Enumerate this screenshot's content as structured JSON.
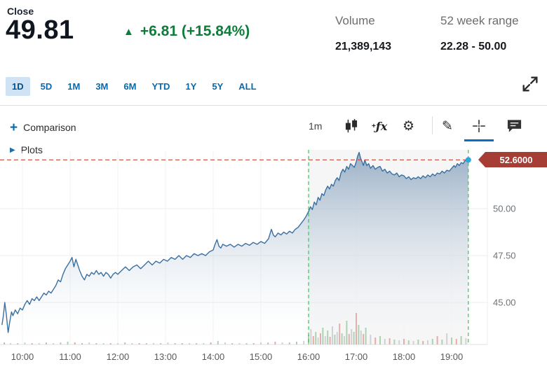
{
  "header": {
    "close_label": "Close",
    "close_value": "49.81",
    "up_arrow": "▲",
    "change_text": "+6.81 (+15.84%)",
    "volume_label": "Volume",
    "volume_value": "21,389,143",
    "range_label": "52 week range",
    "range_value": "22.28 - 50.00",
    "accent_green": "#0e7d3b",
    "accent_blue": "#0769ae"
  },
  "tabs": [
    "1D",
    "5D",
    "1M",
    "3M",
    "6M",
    "YTD",
    "1Y",
    "5Y",
    "ALL"
  ],
  "toolbar": {
    "comparison_plus": "+",
    "comparison_label": "Comparison",
    "interval_label": "1m",
    "fx_plus": "+",
    "fx_label": "ƒx",
    "gear_glyph": "⚙",
    "pencil_glyph": "✎"
  },
  "plots": {
    "arrow": "▶",
    "label": "Plots"
  },
  "price_flag": {
    "value": "52.6000",
    "color": "#a63e35"
  },
  "chart_data": {
    "type": "area",
    "x_ticks": [
      "10:00",
      "11:00",
      "12:00",
      "13:00",
      "14:00",
      "15:00",
      "16:00",
      "17:00",
      "18:00",
      "19:00"
    ],
    "x_tick_hours": [
      10,
      11,
      12,
      13,
      14,
      15,
      16,
      17,
      18,
      19
    ],
    "y_ticks": [
      {
        "label": "50.00",
        "value": 50
      },
      {
        "label": "47.50",
        "value": 47.5
      },
      {
        "label": "45.00",
        "value": 45
      }
    ],
    "ylim": [
      42.5,
      53.5
    ],
    "x_range_hours": [
      9.55,
      19.42
    ],
    "last_price": 52.6,
    "session_lines_hours": [
      16.0,
      19.35
    ],
    "line_color": "#3a70a1",
    "fill_top": "rgba(77,118,158,0.55)",
    "fill_bottom": "rgba(255,255,255,0.03)",
    "session_fill": "rgba(123,133,145,0.07)",
    "session_line_color": "#35c84f",
    "last_price_line_color": "#cc4437",
    "dot_color": "#2ea6df",
    "volume_colors": {
      "n": "#ccd0d4",
      "g": "#a9d0ae",
      "r": "#e2aaa5"
    },
    "points": [
      [
        9.57,
        43.8
      ],
      [
        9.6,
        44.3
      ],
      [
        9.63,
        45.0
      ],
      [
        9.66,
        44.4
      ],
      [
        9.7,
        43.4
      ],
      [
        9.73,
        43.9
      ],
      [
        9.77,
        44.5
      ],
      [
        9.8,
        44.3
      ],
      [
        9.85,
        44.6
      ],
      [
        9.9,
        44.4
      ],
      [
        9.95,
        44.7
      ],
      [
        10.0,
        44.6
      ],
      [
        10.05,
        44.9
      ],
      [
        10.1,
        45.1
      ],
      [
        10.15,
        44.9
      ],
      [
        10.2,
        45.2
      ],
      [
        10.25,
        45.1
      ],
      [
        10.3,
        45.3
      ],
      [
        10.35,
        45.1
      ],
      [
        10.4,
        45.3
      ],
      [
        10.45,
        45.5
      ],
      [
        10.5,
        45.4
      ],
      [
        10.55,
        45.6
      ],
      [
        10.6,
        45.5
      ],
      [
        10.65,
        45.7
      ],
      [
        10.7,
        45.9
      ],
      [
        10.75,
        46.2
      ],
      [
        10.8,
        46.1
      ],
      [
        10.85,
        46.5
      ],
      [
        10.9,
        46.8
      ],
      [
        10.95,
        47.0
      ],
      [
        11.0,
        47.2
      ],
      [
        11.04,
        47.4
      ],
      [
        11.08,
        46.9
      ],
      [
        11.12,
        47.3
      ],
      [
        11.16,
        47.0
      ],
      [
        11.2,
        46.7
      ],
      [
        11.25,
        46.4
      ],
      [
        11.3,
        46.2
      ],
      [
        11.35,
        46.5
      ],
      [
        11.4,
        46.4
      ],
      [
        11.45,
        46.6
      ],
      [
        11.5,
        46.5
      ],
      [
        11.55,
        46.7
      ],
      [
        11.6,
        46.5
      ],
      [
        11.65,
        46.6
      ],
      [
        11.7,
        46.4
      ],
      [
        11.75,
        46.6
      ],
      [
        11.8,
        46.5
      ],
      [
        11.85,
        46.3
      ],
      [
        11.9,
        46.5
      ],
      [
        11.95,
        46.6
      ],
      [
        12.0,
        46.5
      ],
      [
        12.08,
        46.7
      ],
      [
        12.16,
        46.9
      ],
      [
        12.24,
        46.7
      ],
      [
        12.32,
        46.9
      ],
      [
        12.4,
        47.0
      ],
      [
        12.48,
        46.8
      ],
      [
        12.56,
        47.0
      ],
      [
        12.64,
        47.2
      ],
      [
        12.72,
        47.0
      ],
      [
        12.8,
        47.2
      ],
      [
        12.88,
        47.1
      ],
      [
        12.96,
        47.3
      ],
      [
        13.04,
        47.2
      ],
      [
        13.12,
        47.4
      ],
      [
        13.2,
        47.3
      ],
      [
        13.28,
        47.5
      ],
      [
        13.36,
        47.3
      ],
      [
        13.44,
        47.5
      ],
      [
        13.52,
        47.4
      ],
      [
        13.6,
        47.6
      ],
      [
        13.68,
        47.5
      ],
      [
        13.76,
        47.6
      ],
      [
        13.84,
        47.5
      ],
      [
        13.92,
        47.7
      ],
      [
        14.0,
        47.8
      ],
      [
        14.04,
        48.1
      ],
      [
        14.08,
        48.35
      ],
      [
        14.12,
        48.0
      ],
      [
        14.16,
        47.9
      ],
      [
        14.2,
        48.1
      ],
      [
        14.28,
        48.0
      ],
      [
        14.36,
        48.1
      ],
      [
        14.44,
        47.95
      ],
      [
        14.52,
        48.1
      ],
      [
        14.6,
        48.0
      ],
      [
        14.68,
        48.15
      ],
      [
        14.76,
        48.05
      ],
      [
        14.84,
        48.2
      ],
      [
        14.92,
        48.1
      ],
      [
        15.0,
        48.25
      ],
      [
        15.08,
        48.15
      ],
      [
        15.16,
        48.4
      ],
      [
        15.22,
        48.9
      ],
      [
        15.26,
        48.6
      ],
      [
        15.3,
        48.5
      ],
      [
        15.36,
        48.7
      ],
      [
        15.42,
        48.6
      ],
      [
        15.48,
        48.75
      ],
      [
        15.54,
        48.65
      ],
      [
        15.6,
        48.8
      ],
      [
        15.66,
        48.7
      ],
      [
        15.72,
        48.9
      ],
      [
        15.78,
        49.0
      ],
      [
        15.84,
        49.2
      ],
      [
        15.9,
        49.4
      ],
      [
        15.95,
        49.6
      ],
      [
        16.0,
        49.85
      ],
      [
        16.04,
        50.1
      ],
      [
        16.08,
        49.95
      ],
      [
        16.12,
        50.35
      ],
      [
        16.16,
        50.2
      ],
      [
        16.2,
        50.6
      ],
      [
        16.24,
        50.45
      ],
      [
        16.28,
        50.8
      ],
      [
        16.32,
        50.7
      ],
      [
        16.36,
        51.0
      ],
      [
        16.4,
        51.2
      ],
      [
        16.44,
        51.05
      ],
      [
        16.48,
        51.3
      ],
      [
        16.52,
        51.2
      ],
      [
        16.56,
        51.5
      ],
      [
        16.6,
        51.65
      ],
      [
        16.64,
        51.5
      ],
      [
        16.68,
        51.9
      ],
      [
        16.72,
        52.1
      ],
      [
        16.76,
        51.95
      ],
      [
        16.8,
        52.25
      ],
      [
        16.84,
        52.1
      ],
      [
        16.88,
        52.4
      ],
      [
        16.92,
        52.3
      ],
      [
        16.96,
        52.2
      ],
      [
        17.0,
        52.5
      ],
      [
        17.03,
        52.8
      ],
      [
        17.06,
        53.0
      ],
      [
        17.09,
        52.7
      ],
      [
        17.12,
        52.5
      ],
      [
        17.15,
        52.3
      ],
      [
        17.18,
        52.6
      ],
      [
        17.22,
        52.3
      ],
      [
        17.26,
        52.4
      ],
      [
        17.3,
        52.15
      ],
      [
        17.35,
        52.3
      ],
      [
        17.4,
        52.1
      ],
      [
        17.45,
        52.2
      ],
      [
        17.5,
        52.25
      ],
      [
        17.55,
        52.0
      ],
      [
        17.6,
        52.1
      ],
      [
        17.65,
        51.9
      ],
      [
        17.7,
        52.0
      ],
      [
        17.75,
        51.85
      ],
      [
        17.8,
        51.8
      ],
      [
        17.85,
        51.9
      ],
      [
        17.9,
        51.7
      ],
      [
        17.95,
        51.8
      ],
      [
        18.0,
        51.75
      ],
      [
        18.05,
        51.6
      ],
      [
        18.1,
        51.7
      ],
      [
        18.15,
        51.55
      ],
      [
        18.2,
        51.65
      ],
      [
        18.25,
        51.6
      ],
      [
        18.3,
        51.7
      ],
      [
        18.35,
        51.6
      ],
      [
        18.4,
        51.75
      ],
      [
        18.45,
        51.65
      ],
      [
        18.5,
        51.8
      ],
      [
        18.55,
        51.7
      ],
      [
        18.6,
        51.85
      ],
      [
        18.65,
        51.75
      ],
      [
        18.7,
        51.9
      ],
      [
        18.75,
        51.85
      ],
      [
        18.8,
        52.0
      ],
      [
        18.85,
        51.9
      ],
      [
        18.9,
        52.05
      ],
      [
        18.95,
        52.0
      ],
      [
        19.0,
        52.15
      ],
      [
        19.05,
        52.3
      ],
      [
        19.08,
        52.2
      ],
      [
        19.12,
        52.4
      ],
      [
        19.16,
        52.3
      ],
      [
        19.2,
        52.45
      ],
      [
        19.24,
        52.4
      ],
      [
        19.28,
        52.55
      ],
      [
        19.32,
        52.6
      ],
      [
        19.35,
        52.6
      ]
    ],
    "volume": [
      [
        9.62,
        3,
        "r"
      ],
      [
        9.75,
        2,
        "n"
      ],
      [
        9.9,
        2,
        "g"
      ],
      [
        10.05,
        3,
        "n"
      ],
      [
        10.2,
        2,
        "r"
      ],
      [
        10.35,
        2,
        "n"
      ],
      [
        10.5,
        3,
        "g"
      ],
      [
        10.65,
        2,
        "n"
      ],
      [
        10.8,
        3,
        "g"
      ],
      [
        10.95,
        4,
        "g"
      ],
      [
        11.1,
        3,
        "r"
      ],
      [
        11.25,
        2,
        "r"
      ],
      [
        11.4,
        3,
        "n"
      ],
      [
        11.55,
        2,
        "g"
      ],
      [
        11.7,
        2,
        "n"
      ],
      [
        11.85,
        2,
        "r"
      ],
      [
        12.0,
        2,
        "n"
      ],
      [
        12.15,
        3,
        "g"
      ],
      [
        12.3,
        2,
        "n"
      ],
      [
        12.45,
        2,
        "r"
      ],
      [
        12.6,
        2,
        "g"
      ],
      [
        12.75,
        2,
        "n"
      ],
      [
        12.9,
        2,
        "g"
      ],
      [
        13.05,
        3,
        "n"
      ],
      [
        13.2,
        2,
        "g"
      ],
      [
        13.35,
        2,
        "r"
      ],
      [
        13.5,
        2,
        "n"
      ],
      [
        13.65,
        2,
        "g"
      ],
      [
        13.8,
        2,
        "n"
      ],
      [
        13.95,
        3,
        "r"
      ],
      [
        14.1,
        5,
        "g"
      ],
      [
        14.25,
        3,
        "n"
      ],
      [
        14.4,
        2,
        "g"
      ],
      [
        14.55,
        2,
        "n"
      ],
      [
        14.7,
        2,
        "g"
      ],
      [
        14.85,
        2,
        "r"
      ],
      [
        15.0,
        3,
        "n"
      ],
      [
        15.15,
        3,
        "g"
      ],
      [
        15.3,
        4,
        "r"
      ],
      [
        15.45,
        3,
        "n"
      ],
      [
        15.6,
        3,
        "g"
      ],
      [
        15.75,
        4,
        "g"
      ],
      [
        15.9,
        5,
        "n"
      ],
      [
        16.0,
        14,
        "g"
      ],
      [
        16.05,
        22,
        "n"
      ],
      [
        16.1,
        12,
        "r"
      ],
      [
        16.15,
        18,
        "g"
      ],
      [
        16.2,
        10,
        "n"
      ],
      [
        16.25,
        16,
        "r"
      ],
      [
        16.3,
        24,
        "g"
      ],
      [
        16.35,
        12,
        "n"
      ],
      [
        16.4,
        20,
        "g"
      ],
      [
        16.45,
        11,
        "r"
      ],
      [
        16.5,
        26,
        "n"
      ],
      [
        16.55,
        14,
        "g"
      ],
      [
        16.6,
        18,
        "n"
      ],
      [
        16.65,
        30,
        "r"
      ],
      [
        16.7,
        16,
        "g"
      ],
      [
        16.75,
        12,
        "n"
      ],
      [
        16.8,
        34,
        "g"
      ],
      [
        16.85,
        15,
        "r"
      ],
      [
        16.9,
        22,
        "n"
      ],
      [
        16.95,
        18,
        "g"
      ],
      [
        17.0,
        45,
        "r"
      ],
      [
        17.05,
        28,
        "g"
      ],
      [
        17.1,
        20,
        "n"
      ],
      [
        17.15,
        15,
        "r"
      ],
      [
        17.2,
        24,
        "g"
      ],
      [
        17.3,
        14,
        "n"
      ],
      [
        17.4,
        10,
        "r"
      ],
      [
        17.5,
        12,
        "g"
      ],
      [
        17.6,
        8,
        "n"
      ],
      [
        17.7,
        9,
        "r"
      ],
      [
        17.8,
        7,
        "g"
      ],
      [
        17.9,
        6,
        "n"
      ],
      [
        18.0,
        8,
        "r"
      ],
      [
        18.1,
        6,
        "g"
      ],
      [
        18.2,
        5,
        "n"
      ],
      [
        18.3,
        7,
        "g"
      ],
      [
        18.4,
        5,
        "r"
      ],
      [
        18.5,
        6,
        "n"
      ],
      [
        18.6,
        8,
        "g"
      ],
      [
        18.7,
        12,
        "r"
      ],
      [
        18.8,
        7,
        "g"
      ],
      [
        18.9,
        16,
        "n"
      ],
      [
        19.0,
        10,
        "g"
      ],
      [
        19.1,
        8,
        "r"
      ],
      [
        19.2,
        12,
        "g"
      ],
      [
        19.3,
        9,
        "n"
      ]
    ]
  }
}
